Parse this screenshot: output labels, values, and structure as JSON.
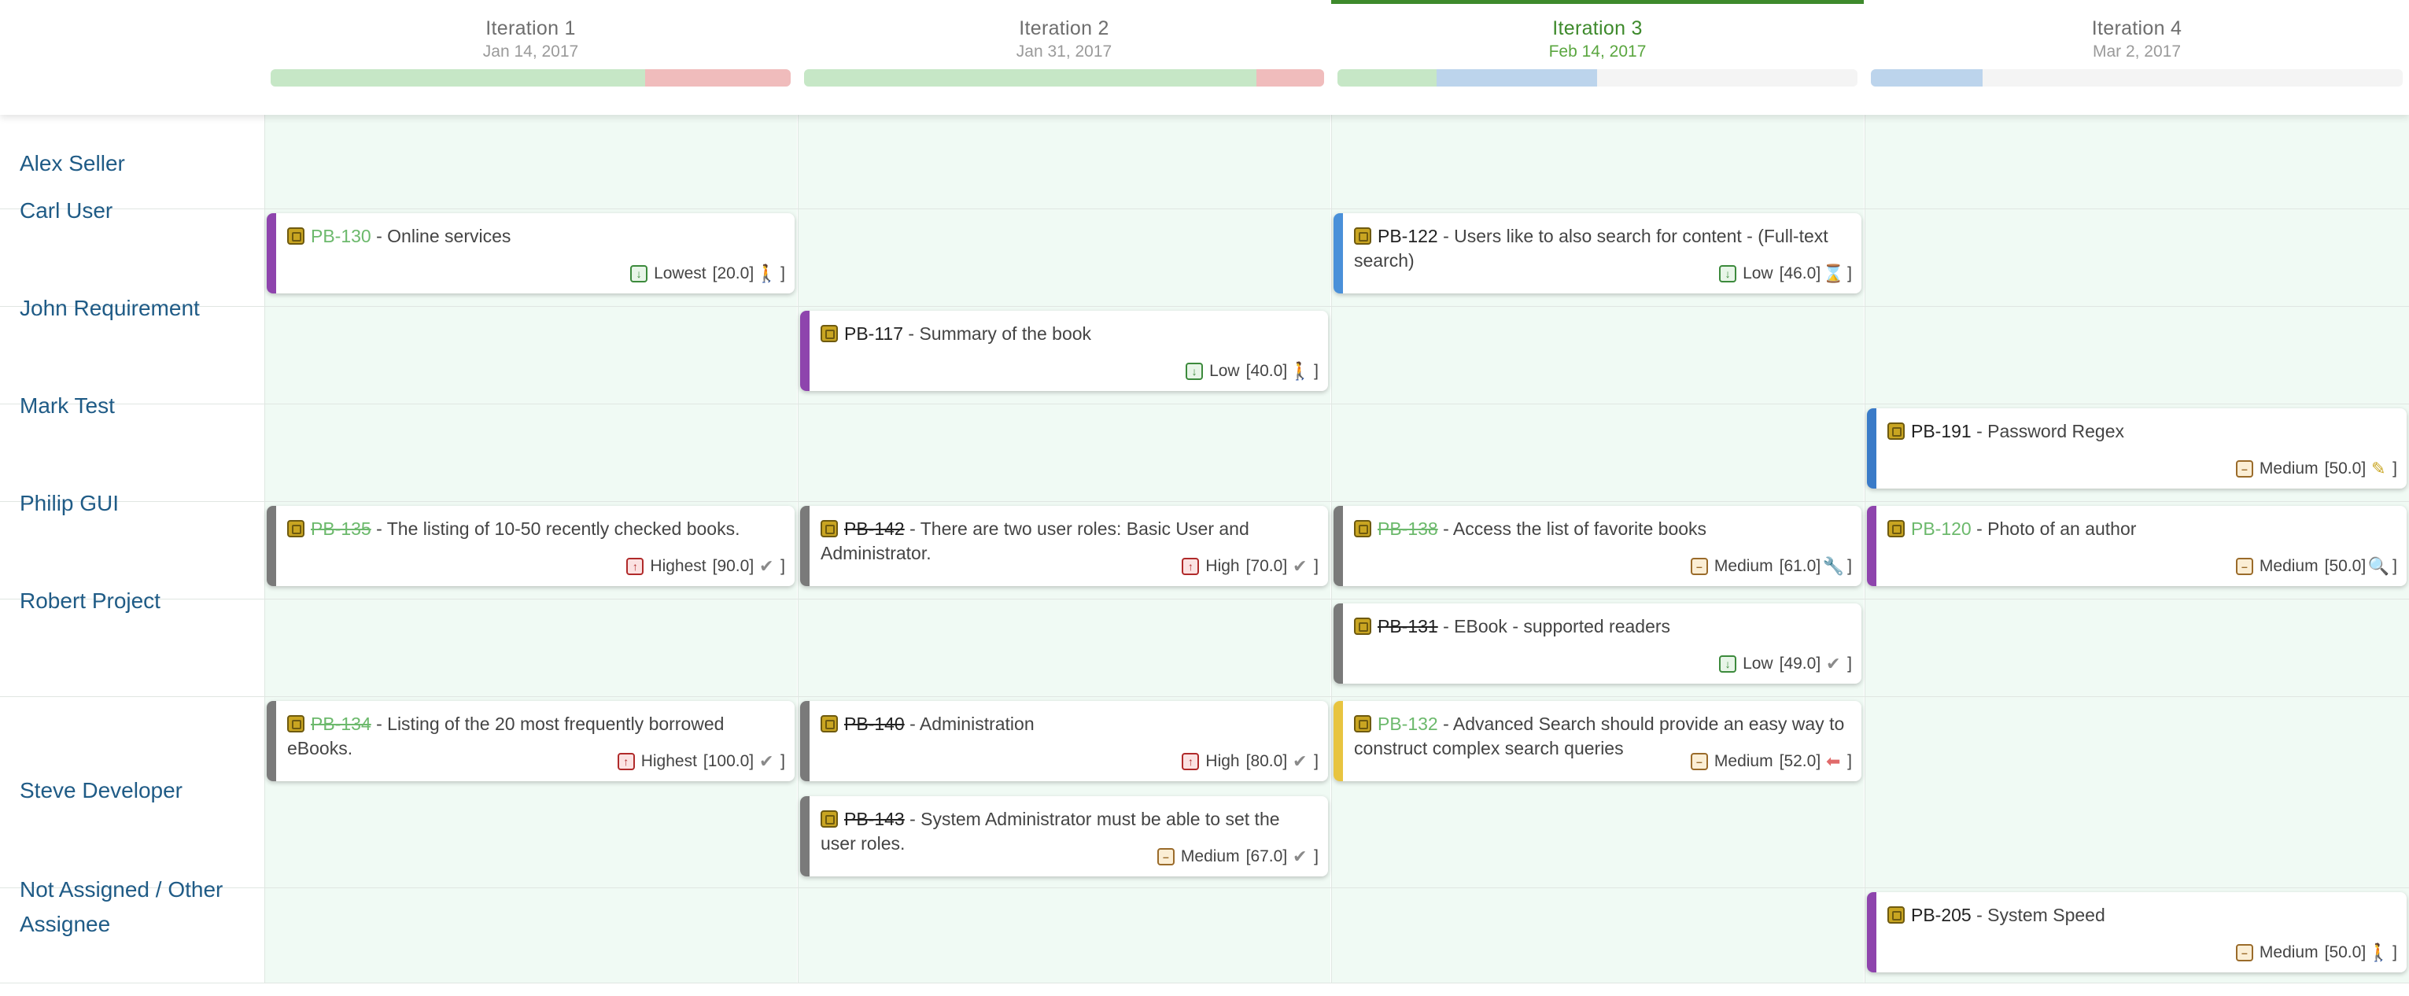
{
  "iterations": [
    {
      "name": "Iteration 1",
      "date": "Jan 14, 2017",
      "current": false,
      "progress": [
        {
          "pct": 72,
          "color": "#c6e7c6"
        },
        {
          "pct": 28,
          "color": "#f0bcbc"
        }
      ]
    },
    {
      "name": "Iteration 2",
      "date": "Jan 31, 2017",
      "current": false,
      "progress": [
        {
          "pct": 87,
          "color": "#c6e7c6"
        },
        {
          "pct": 13,
          "color": "#f0bcbc"
        }
      ]
    },
    {
      "name": "Iteration 3",
      "date": "Feb 14, 2017",
      "current": true,
      "progress": [
        {
          "pct": 19,
          "color": "#c6e7c6"
        },
        {
          "pct": 31,
          "color": "#bcd4ec"
        },
        {
          "pct": 50,
          "color": "#f4f4f4"
        }
      ]
    },
    {
      "name": "Iteration 4",
      "date": "Mar 2, 2017",
      "current": false,
      "progress": [
        {
          "pct": 21,
          "color": "#bcd4ec"
        },
        {
          "pct": 79,
          "color": "#f4f4f4"
        }
      ]
    }
  ],
  "assignees": [
    {
      "name": "Alex Seller"
    },
    {
      "name": "Carl User"
    },
    {
      "name": "John Requirement"
    },
    {
      "name": "Mark Test"
    },
    {
      "name": "Philip GUI"
    },
    {
      "name": "Robert Project"
    },
    {
      "name": "Steve Developer"
    },
    {
      "name": "Not Assigned / Other Assignee"
    }
  ],
  "cards": [
    {
      "row": 1,
      "col": 0,
      "slot": 0,
      "bar": "#8e44ad",
      "key": "PB-130",
      "key_style": "green",
      "summary": " - Online services",
      "priority": "Lowest",
      "prio_class": "lowest",
      "points": "[20.0]",
      "status_icon": "person-icon",
      "status_glyph": "🚶",
      "status_color": "#3c8a3c"
    },
    {
      "row": 1,
      "col": 2,
      "slot": 0,
      "bar": "#4a90d9",
      "key": "PB-122",
      "key_style": "plain",
      "summary": " - Users like to also search for content - (Full-text search)",
      "priority": "Low",
      "prio_class": "low",
      "points": "[46.0]",
      "status_icon": "hourglass-icon",
      "status_glyph": "⌛",
      "status_color": "#7a7a7a"
    },
    {
      "row": 2,
      "col": 1,
      "slot": 0,
      "bar": "#8e44ad",
      "key": "PB-117",
      "key_style": "plain",
      "summary": " - Summary of the book",
      "priority": "Low",
      "prio_class": "low",
      "points": "[40.0]",
      "status_icon": "person-icon",
      "status_glyph": "🚶",
      "status_color": "#3c8a3c"
    },
    {
      "row": 3,
      "col": 3,
      "slot": 0,
      "bar": "#3a7bc8",
      "key": "PB-191",
      "key_style": "plain",
      "summary": " - Password Regex",
      "priority": "Medium",
      "prio_class": "medium",
      "points": "[50.0]",
      "status_icon": "pencil-icon",
      "status_glyph": "✎",
      "status_color": "#c9a521"
    },
    {
      "row": 4,
      "col": 0,
      "slot": 0,
      "bar": "#7a7a7a",
      "key": "PB-135",
      "key_style": "done-green",
      "summary": " - The listing of 10-50 recently checked books.",
      "priority": "Highest",
      "prio_class": "highest",
      "points": "[90.0]",
      "status_icon": "check-icon",
      "status_glyph": "✔",
      "status_color": "#8a8a8a"
    },
    {
      "row": 4,
      "col": 1,
      "slot": 0,
      "bar": "#7a7a7a",
      "key": "PB-142",
      "key_style": "done-black",
      "summary": " - There are two user roles: Basic User and Administrator.",
      "priority": "High",
      "prio_class": "high",
      "points": "[70.0]",
      "status_icon": "check-icon",
      "status_glyph": "✔",
      "status_color": "#8a8a8a"
    },
    {
      "row": 4,
      "col": 2,
      "slot": 0,
      "bar": "#7a7a7a",
      "key": "PB-138",
      "key_style": "done-green",
      "summary": " - Access the list of favorite books",
      "priority": "Medium",
      "prio_class": "medium",
      "points": "[61.0]",
      "status_icon": "wrench-icon",
      "status_glyph": "🔧",
      "status_color": "#8a8a8a"
    },
    {
      "row": 4,
      "col": 3,
      "slot": 0,
      "bar": "#8e44ad",
      "key": "PB-120",
      "key_style": "green",
      "summary": " - Photo of an author",
      "priority": "Medium",
      "prio_class": "medium",
      "points": "[50.0]",
      "status_icon": "magnifier-icon",
      "status_glyph": "🔍",
      "status_color": "#8a8a8a"
    },
    {
      "row": 5,
      "col": 2,
      "slot": 0,
      "bar": "#7a7a7a",
      "key": "PB-131",
      "key_style": "done-black",
      "summary": " - EBook - supported readers",
      "priority": "Low",
      "prio_class": "low",
      "points": "[49.0]",
      "status_icon": "check-icon",
      "status_glyph": "✔",
      "status_color": "#8a8a8a"
    },
    {
      "row": 6,
      "col": 0,
      "slot": 0,
      "bar": "#7a7a7a",
      "key": "PB-134",
      "key_style": "done-green",
      "summary": " - Listing of the 20 most frequently borrowed eBooks.",
      "priority": "Highest",
      "prio_class": "highest",
      "points": "[100.0]",
      "status_icon": "check-icon",
      "status_glyph": "✔",
      "status_color": "#8a8a8a"
    },
    {
      "row": 6,
      "col": 1,
      "slot": 0,
      "bar": "#7a7a7a",
      "key": "PB-140",
      "key_style": "done-black",
      "summary": " - Administration",
      "priority": "High",
      "prio_class": "high",
      "points": "[80.0]",
      "status_icon": "check-icon",
      "status_glyph": "✔",
      "status_color": "#8a8a8a"
    },
    {
      "row": 6,
      "col": 2,
      "slot": 0,
      "bar": "#e8c440",
      "key": "PB-132",
      "key_style": "green",
      "summary": " - Advanced Search should provide an easy way to construct complex search queries",
      "priority": "Medium",
      "prio_class": "medium",
      "points": "[52.0]",
      "status_icon": "arrow-left-icon",
      "status_glyph": "⬅",
      "status_color": "#e06a6a"
    },
    {
      "row": 6,
      "col": 1,
      "slot": 1,
      "bar": "#7a7a7a",
      "key": "PB-143",
      "key_style": "done-black",
      "summary": " - System Administrator must be able to set the user roles.",
      "priority": "Medium",
      "prio_class": "medium",
      "points": "[67.0]",
      "status_icon": "check-icon",
      "status_glyph": "✔",
      "status_color": "#8a8a8a"
    },
    {
      "row": 7,
      "col": 3,
      "slot": 0,
      "bar": "#8e44ad",
      "key": "PB-205",
      "key_style": "plain",
      "summary": " - System Speed",
      "priority": "Medium",
      "prio_class": "medium",
      "points": "[50.0]",
      "status_icon": "person-icon",
      "status_glyph": "🚶",
      "status_color": "#3c8a3c"
    }
  ],
  "closing_bracket": "]"
}
